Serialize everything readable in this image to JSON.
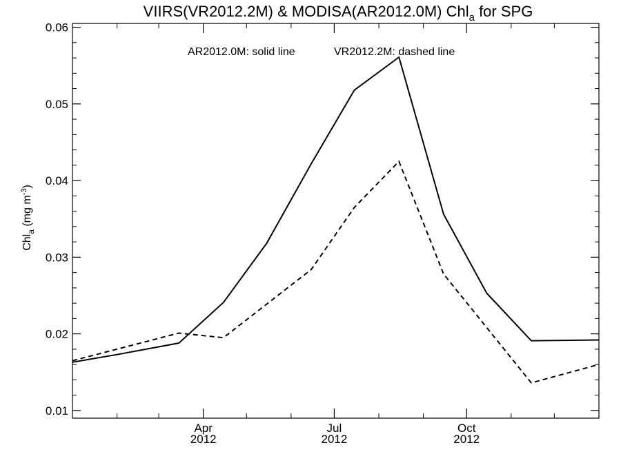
{
  "chart_data": {
    "type": "line",
    "title": {
      "prefix": "VIIRS(VR2012.2M) & MODISA(AR2012.0M)  Chl",
      "subscript": "a",
      "suffix": " for SPG"
    },
    "ylabel": {
      "prefix": "Chl",
      "subscript": "a",
      "middle": " (mg m",
      "superscript": "-3",
      "suffix": ")"
    },
    "annotations": [
      "AR2012.0M: solid line",
      "VR2012.2M: dashed line"
    ],
    "xlim": [
      "2012-01-01",
      "2013-01-01"
    ],
    "ylim": [
      0.009,
      0.0605
    ],
    "yticks": [
      0.01,
      0.02,
      0.03,
      0.04,
      0.05,
      0.06
    ],
    "ytick_labels": [
      "0.01",
      "0.02",
      "0.03",
      "0.04",
      "0.05",
      "0.06"
    ],
    "xticks_major": [
      {
        "date": "2012-04-01",
        "month": "Apr",
        "year": "2012"
      },
      {
        "date": "2012-07-01",
        "month": "Jul",
        "year": "2012"
      },
      {
        "date": "2012-10-01",
        "month": "Oct",
        "year": "2012"
      }
    ],
    "xticks_minor": [
      "2012-02-01",
      "2012-03-01",
      "2012-05-01",
      "2012-06-01",
      "2012-08-01",
      "2012-09-01",
      "2012-11-01",
      "2012-12-01"
    ],
    "grid": false,
    "series": [
      {
        "style": "solid",
        "x": [
          "2012-01-01",
          "2012-02-01",
          "2012-03-15",
          "2012-04-15",
          "2012-05-15",
          "2012-06-15",
          "2012-07-15",
          "2012-08-15",
          "2012-09-15",
          "2012-10-15",
          "2012-11-15",
          "2013-01-01"
        ],
        "y": [
          0.0163,
          0.0173,
          0.0188,
          0.0241,
          0.0318,
          0.0422,
          0.0518,
          0.0561,
          0.0356,
          0.0253,
          0.0191,
          0.0192
        ]
      },
      {
        "style": "dashed",
        "x": [
          "2012-01-01",
          "2012-03-15",
          "2012-04-15",
          "2012-06-15",
          "2012-07-15",
          "2012-08-15",
          "2012-09-15",
          "2012-11-15",
          "2013-01-01"
        ],
        "y": [
          0.0165,
          0.0201,
          0.0195,
          0.0284,
          0.0365,
          0.0425,
          0.0278,
          0.0136,
          0.016
        ]
      }
    ]
  }
}
